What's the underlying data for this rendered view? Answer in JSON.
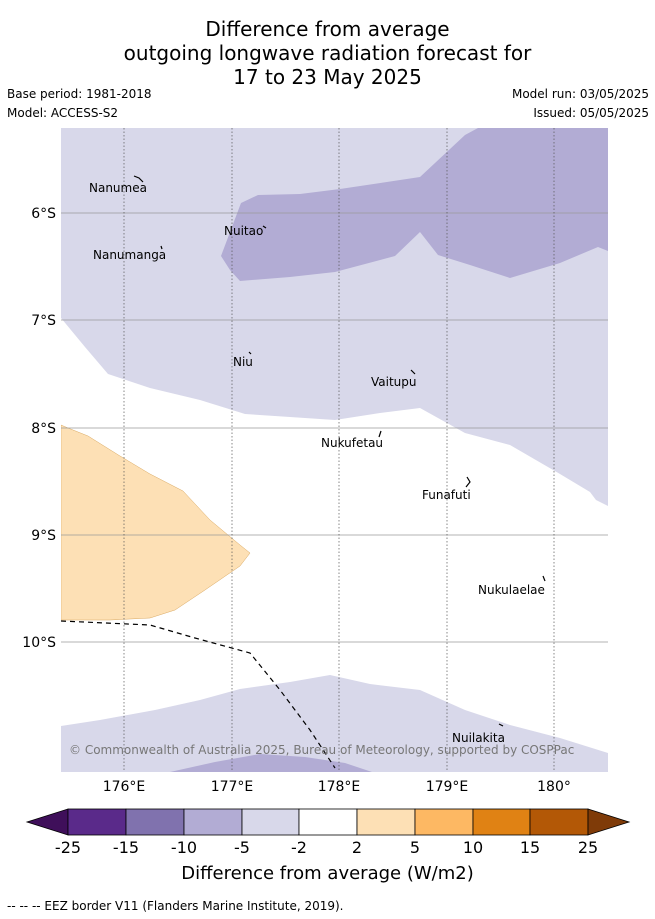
{
  "title": {
    "line1": "Difference from average",
    "line2": "outgoing longwave radiation forecast for",
    "line3": "17 to 23 May 2025"
  },
  "meta": {
    "base_period": "Base period: 1981-2018",
    "model": "Model: ACCESS-S2",
    "model_run": "Model run: 03/05/2025",
    "issued": "Issued: 05/05/2025"
  },
  "map": {
    "lat_labels": [
      "6°S",
      "7°S",
      "8°S",
      "9°S",
      "10°S"
    ],
    "lon_labels": [
      "176°E",
      "177°E",
      "178°E",
      "179°E",
      "180°"
    ],
    "places": [
      "Nanumea",
      "Nuitao",
      "Nanumanga",
      "Niu",
      "Vaitupu",
      "Nukufetau",
      "Funafuti",
      "Nukulaelae",
      "Nuilakita"
    ],
    "copyright": "© Commonwealth of Australia 2025, Bureau of Meteorology, supported by COSPPac",
    "colors": {
      "light_purple": "#d8d8ea",
      "mid_purple": "#b2acd4",
      "light_orange": "#fde0b5",
      "eez_line": "#000000"
    }
  },
  "colorbar": {
    "tick_labels": [
      "-25",
      "-15",
      "-10",
      "-5",
      "-2",
      "2",
      "5",
      "10",
      "15",
      "25"
    ],
    "colors": [
      "#3f0f5a",
      "#5a2a8a",
      "#8072ae",
      "#b2acd4",
      "#d8d8ea",
      "#ffffff",
      "#fde0b5",
      "#fdb863",
      "#e08214",
      "#b35806",
      "#7f3b08"
    ],
    "title": "Difference from average (W/m2)"
  },
  "footnote": "-- -- -- EEZ border V11 (Flanders Marine Institute, 2019)."
}
